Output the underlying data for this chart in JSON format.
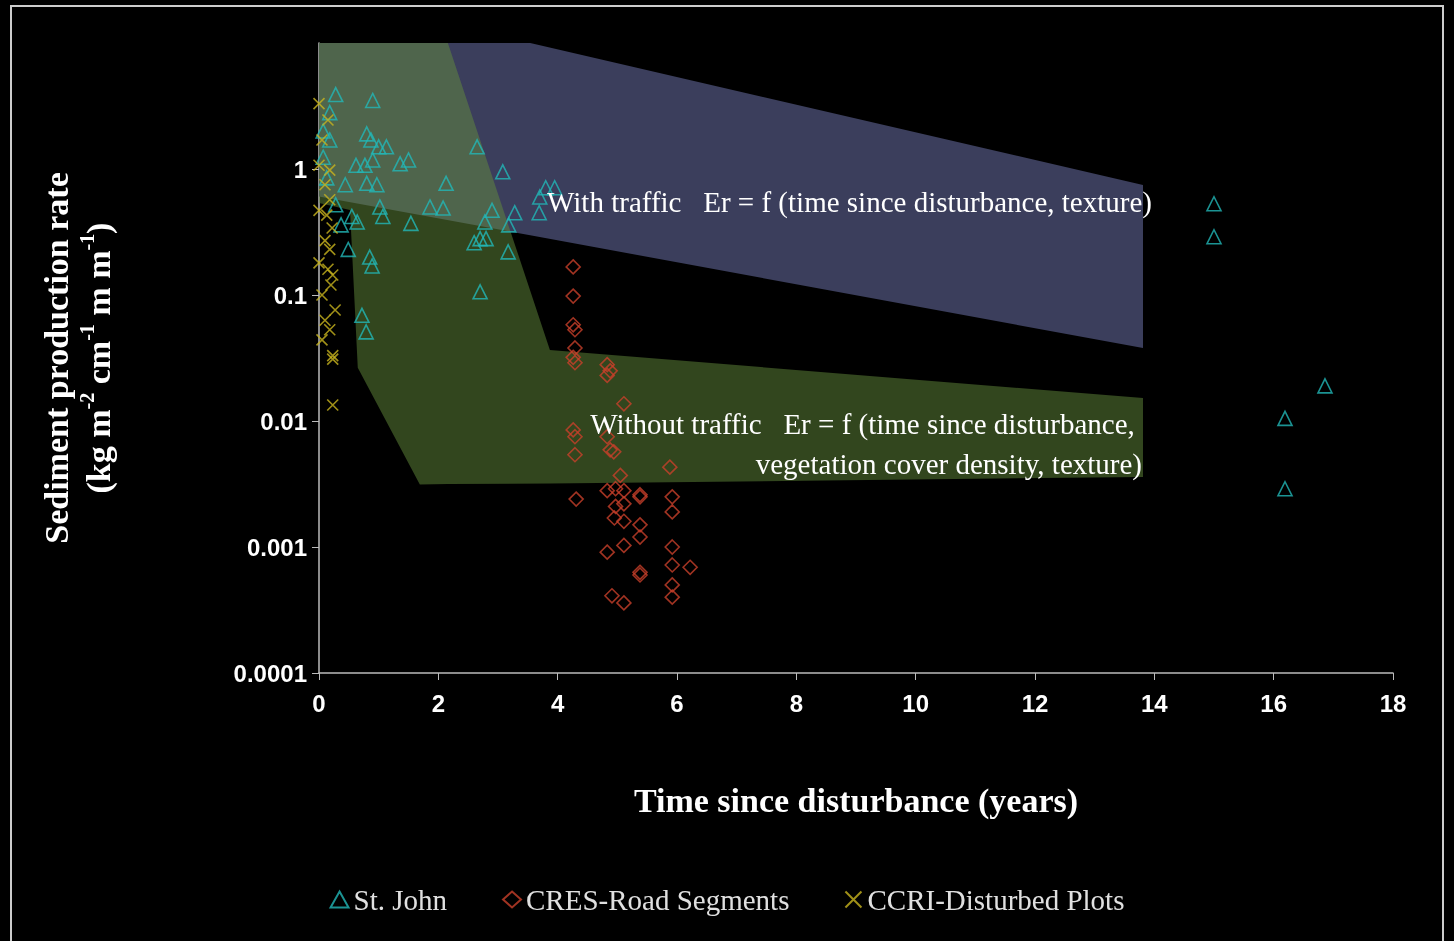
{
  "chart_data": {
    "type": "scatter",
    "xlabel": "Time since disturbance (years)",
    "ylabel": "Sediment production rate\n(kg m$^{-2}$ cm$^{-1}$ m m$^{-1}$)",
    "log": "y",
    "legend": "bottom",
    "xlim": [
      0,
      18
    ],
    "xticks": [
      0,
      2,
      4,
      6,
      8,
      10,
      12,
      14,
      16,
      18
    ],
    "ylim": [
      0.0001,
      10
    ],
    "yticks": [
      0.0001,
      0.001,
      0.01,
      0.1,
      1
    ],
    "annotations": [
      "With traffic   Er = f (time since disturbance, texture)",
      "Without traffic   Er = f (time since disturbance, vegetation cover density, texture)"
    ],
    "series": [
      {
        "type": "area",
        "color": "#3b3e5c",
        "x": [
          0,
          3.54,
          13.81
        ],
        "values": [
          null,
          null,
          null
        ],
        "upper": [
          10,
          10,
          0.746
        ],
        "lower": [
          0.605,
          0.298,
          0.0379
        ]
      },
      {
        "type": "area",
        "color": "#648c3c",
        "x": [
          0,
          0.52,
          0.65,
          1.69,
          2.16,
          3.87,
          13.81
        ],
        "values": [
          null,
          null,
          null,
          null,
          null,
          null,
          null
        ],
        "upper": [
          10,
          10,
          10,
          10,
          10,
          0.0366,
          0.0152
        ],
        "lower": [
          0.537,
          0.473,
          0.0265,
          0.00314,
          0.00316,
          0.00319,
          0.0036
        ]
      },
      {
        "name": "St. John",
        "color": "#22b8b8",
        "marker": "triangle",
        "x": [
          0.28,
          0.9,
          0.18,
          0.07,
          0.18,
          0.8,
          0.87,
          1.0,
          1.13,
          0.62,
          0.77,
          0.9,
          0.97,
          0.8,
          0.44,
          1.36,
          1.5,
          2.65,
          3.08,
          2.13,
          1.86,
          2.08,
          1.02,
          1.07,
          1.54,
          0.55,
          0.64,
          0.28,
          0.49,
          0.85,
          0.89,
          0.72,
          0.79,
          2.7,
          2.6,
          2.7,
          2.8,
          2.78,
          2.9,
          3.17,
          3.28,
          3.18,
          3.69,
          3.8,
          3.95,
          3.7,
          15.0,
          15.0,
          16.19,
          16.19,
          16.86,
          0.07,
          0.13,
          0.37
        ],
        "values": [
          3.9,
          3.5,
          2.8,
          2.0,
          1.7,
          1.9,
          1.7,
          1.5,
          1.5,
          1.07,
          1.07,
          1.18,
          0.75,
          0.77,
          0.75,
          1.1,
          1.18,
          1.5,
          0.95,
          0.77,
          0.5,
          0.49,
          0.5,
          0.42,
          0.37,
          0.42,
          0.38,
          0.52,
          0.23,
          0.2,
          0.17,
          0.069,
          0.051,
          0.106,
          0.26,
          0.28,
          0.28,
          0.38,
          0.47,
          0.22,
          0.45,
          0.36,
          0.45,
          0.71,
          0.71,
          0.6,
          0.53,
          0.29,
          0.0105,
          0.0029,
          0.019,
          1.24,
          0.85,
          0.36
        ]
      },
      {
        "name": "CRES-Road Segments",
        "color": "#c8402a",
        "marker": "diamond",
        "x": [
          4.26,
          4.26,
          4.26,
          4.29,
          4.29,
          4.29,
          4.26,
          4.83,
          4.83,
          4.88,
          5.11,
          4.26,
          4.29,
          4.29,
          4.83,
          4.88,
          4.94,
          5.05,
          5.88,
          4.31,
          4.83,
          4.97,
          5.11,
          4.97,
          5.11,
          5.38,
          5.38,
          4.95,
          5.11,
          5.38,
          5.38,
          5.92,
          5.92,
          5.92,
          4.83,
          5.11,
          5.38,
          5.38,
          5.92,
          6.22,
          5.92,
          5.92,
          4.91,
          5.11
        ],
        "values": [
          0.167,
          0.098,
          0.058,
          0.053,
          0.038,
          0.029,
          0.032,
          0.028,
          0.023,
          0.025,
          0.0137,
          0.0085,
          0.0054,
          0.0075,
          0.0075,
          0.0059,
          0.0057,
          0.0037,
          0.0043,
          0.0024,
          0.0028,
          0.0029,
          0.0028,
          0.0021,
          0.0022,
          0.0026,
          0.0025,
          0.0017,
          0.0016,
          0.0015,
          0.0012,
          0.0025,
          0.0019,
          0.001,
          0.00091,
          0.00103,
          0.00063,
          0.0006,
          0.00072,
          0.00069,
          0.0005,
          0.0004,
          0.00041,
          0.00036
        ]
      },
      {
        "name": "CCRI-Disturbed Plots",
        "color": "#c8b41e",
        "marker": "cross",
        "x": [
          0,
          0.15,
          0.05,
          0,
          0.18,
          0.1,
          0.18,
          0,
          0.13,
          0.22,
          0.1,
          0.18,
          0,
          0.15,
          0.23,
          0.05,
          0.2,
          0.27,
          0.1,
          0.18,
          0.05,
          0.23,
          0.23,
          0.23
        ],
        "values": [
          3.3,
          2.45,
          1.7,
          1.07,
          0.98,
          0.75,
          0.57,
          0.47,
          0.43,
          0.34,
          0.27,
          0.23,
          0.18,
          0.16,
          0.144,
          0.1,
          0.12,
          0.076,
          0.063,
          0.053,
          0.044,
          0.033,
          0.031,
          0.0134
        ]
      }
    ]
  }
}
